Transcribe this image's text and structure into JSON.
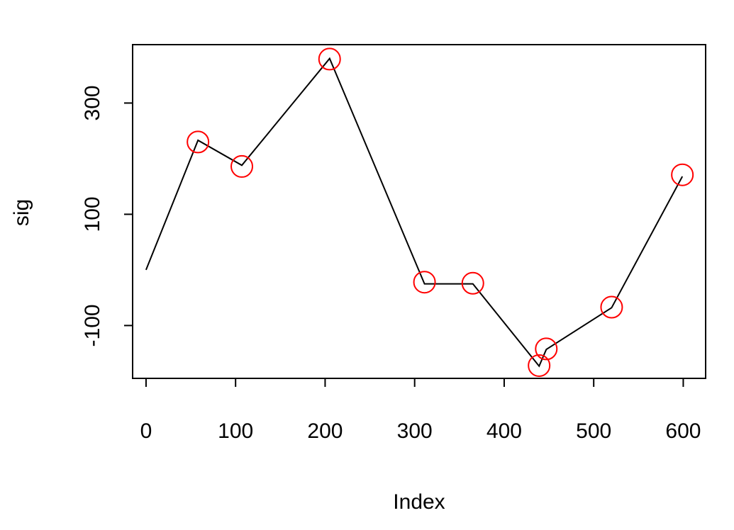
{
  "chart_data": {
    "type": "line",
    "title": "",
    "xlabel": "Index",
    "ylabel": "sig",
    "xlim": [
      -15,
      625
    ],
    "ylim": [
      -195,
      405
    ],
    "x_ticks": [
      0,
      100,
      200,
      300,
      400,
      500,
      600
    ],
    "x_tick_labels": [
      "0",
      "100",
      "200",
      "300",
      "400",
      "500",
      "600"
    ],
    "y_ticks": [
      -100,
      100,
      300
    ],
    "y_tick_labels": [
      "-100",
      "100",
      "300"
    ],
    "grid": false,
    "line_color": "#000000",
    "marker_color": "#ff0000",
    "line": {
      "x": [
        0,
        58,
        107,
        205,
        311,
        365,
        439,
        447,
        520,
        599
      ],
      "y": [
        0,
        233,
        188,
        380,
        -25,
        -25,
        -173,
        -143,
        -68,
        168
      ]
    },
    "circles": {
      "x": [
        58,
        107,
        205,
        311,
        365,
        439,
        447,
        520,
        599
      ],
      "y": [
        230,
        186,
        379,
        -22,
        -24,
        -172,
        -142,
        -67,
        171
      ]
    }
  }
}
